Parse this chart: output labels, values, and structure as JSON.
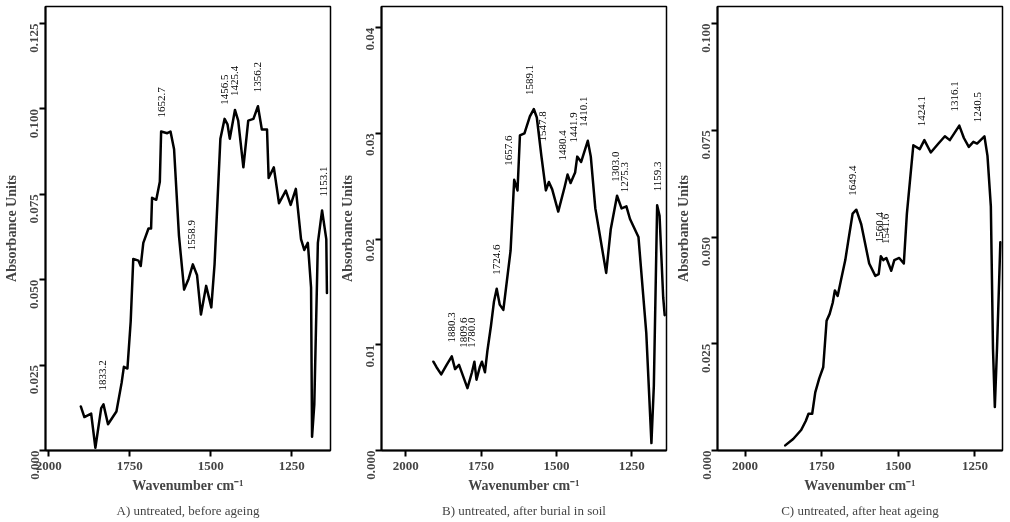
{
  "chart_data": [
    {
      "type": "line",
      "title": "A) untreated, before ageing",
      "xlabel": "Wavenumber cm⁻¹",
      "ylabel": "Absorbance Units",
      "color": "#000000",
      "grid": false,
      "xlim": [
        2010,
        1130
      ],
      "xticks": [
        2000,
        1750,
        1500,
        1250
      ],
      "ylim": [
        0,
        0.13
      ],
      "yticks": [
        {
          "value": 0,
          "label": "0.000"
        },
        {
          "value": 0.025,
          "label": "0.025"
        },
        {
          "value": 0.05,
          "label": "0.050"
        },
        {
          "value": 0.075,
          "label": "0.075"
        },
        {
          "value": 0.1,
          "label": "0.100"
        },
        {
          "value": 0.125,
          "label": "0.125"
        }
      ],
      "x": [
        1901,
        1890,
        1869,
        1856,
        1838,
        1831,
        1817,
        1791,
        1775,
        1768,
        1757,
        1747,
        1739,
        1723,
        1716,
        1708,
        1692,
        1684,
        1681,
        1668,
        1657,
        1653,
        1634,
        1624,
        1613,
        1598,
        1582,
        1568,
        1555,
        1542,
        1530,
        1514,
        1498,
        1488,
        1470,
        1457,
        1448,
        1441,
        1425,
        1415,
        1399,
        1384,
        1368,
        1354,
        1342,
        1326,
        1321,
        1305,
        1289,
        1268,
        1253,
        1237,
        1221,
        1211,
        1200,
        1190,
        1187,
        1180,
        1169,
        1156,
        1143,
        1141
      ],
      "values": [
        0.0129,
        0.0098,
        0.0108,
        0.0008,
        0.0124,
        0.0135,
        0.0077,
        0.0114,
        0.0198,
        0.0245,
        0.024,
        0.0377,
        0.0561,
        0.0556,
        0.054,
        0.0608,
        0.065,
        0.065,
        0.074,
        0.0734,
        0.0787,
        0.0934,
        0.0929,
        0.0934,
        0.0882,
        0.063,
        0.0471,
        0.0503,
        0.0545,
        0.0513,
        0.0398,
        0.0482,
        0.0419,
        0.0545,
        0.0913,
        0.0971,
        0.0955,
        0.0913,
        0.0997,
        0.0966,
        0.0829,
        0.0966,
        0.0971,
        0.1008,
        0.094,
        0.094,
        0.0798,
        0.0829,
        0.0724,
        0.0761,
        0.0719,
        0.0766,
        0.0619,
        0.0587,
        0.0608,
        0.0477,
        0.004,
        0.0135,
        0.0608,
        0.0703,
        0.0619,
        0.0461
      ],
      "annotations": [
        {
          "text": "1833.2",
          "x": 1833.2,
          "y": 0.0135
        },
        {
          "text": "1652.7",
          "x": 1652.7,
          "y": 0.0934
        },
        {
          "text": "1558.9",
          "x": 1558.9,
          "y": 0.0545
        },
        {
          "text": "1456.5",
          "x": 1456.5,
          "y": 0.0971
        },
        {
          "text": "1425.4",
          "x": 1425.4,
          "y": 0.0997
        },
        {
          "text": "1356.2",
          "x": 1356.2,
          "y": 0.1008
        },
        {
          "text": "1153.1",
          "x": 1153.1,
          "y": 0.0703
        }
      ]
    },
    {
      "type": "line",
      "title": "B) untreated, after burial in soil",
      "xlabel": "Wavenumber cm⁻¹",
      "ylabel": "Absorbance Units",
      "color": "#000000",
      "grid": false,
      "xlim": [
        2080,
        1135
      ],
      "xticks": [
        2000,
        1750,
        1500,
        1250
      ],
      "ylim": [
        0,
        0.042
      ],
      "yticks": [
        {
          "value": 0,
          "label": "0.000"
        },
        {
          "value": 0.01,
          "label": "0.01"
        },
        {
          "value": 0.02,
          "label": "0.02"
        },
        {
          "value": 0.03,
          "label": "0.03"
        },
        {
          "value": 0.04,
          "label": "0.04"
        }
      ],
      "x": [
        1908,
        1898,
        1882,
        1864,
        1847,
        1836,
        1823,
        1795,
        1780,
        1772,
        1765,
        1754,
        1747,
        1737,
        1729,
        1717,
        1707,
        1698,
        1688,
        1676,
        1652,
        1640,
        1629,
        1621,
        1606,
        1588,
        1575,
        1565,
        1550,
        1535,
        1525,
        1514,
        1494,
        1473,
        1463,
        1453,
        1438,
        1431,
        1418,
        1396,
        1386,
        1371,
        1355,
        1335,
        1320,
        1299,
        1284,
        1268,
        1256,
        1228,
        1202,
        1185,
        1177,
        1166,
        1158,
        1146,
        1141
      ],
      "values": [
        0.0084,
        0.0079,
        0.0072,
        0.0081,
        0.0089,
        0.0077,
        0.0081,
        0.0059,
        0.0074,
        0.0084,
        0.0067,
        0.0079,
        0.0084,
        0.0074,
        0.0094,
        0.0118,
        0.0141,
        0.0153,
        0.0138,
        0.0133,
        0.0189,
        0.0256,
        0.0246,
        0.0298,
        0.03,
        0.0316,
        0.0323,
        0.0315,
        0.0279,
        0.0246,
        0.0254,
        0.0247,
        0.0226,
        0.0249,
        0.0261,
        0.0253,
        0.0263,
        0.0278,
        0.0273,
        0.0293,
        0.0278,
        0.0229,
        0.0202,
        0.0168,
        0.0209,
        0.0241,
        0.0229,
        0.0231,
        0.0219,
        0.0202,
        0.0111,
        0.0007,
        0.0061,
        0.0232,
        0.0222,
        0.0145,
        0.0128
      ],
      "annotations": [
        {
          "text": "1880.3",
          "x": 1847,
          "y": 0.0089
        },
        {
          "text": "1809.6",
          "x": 1809.6,
          "y": 0.0084
        },
        {
          "text": "1780.0",
          "x": 1780.0,
          "y": 0.0084
        },
        {
          "text": "1724.6",
          "x": 1698,
          "y": 0.0153
        },
        {
          "text": "1657.6",
          "x": 1657.6,
          "y": 0.0256
        },
        {
          "text": "1589.1",
          "x": 1589.1,
          "y": 0.0323
        },
        {
          "text": "1547.8",
          "x": 1547.8,
          "y": 0.0279
        },
        {
          "text": "1480.4",
          "x": 1480.4,
          "y": 0.0261
        },
        {
          "text": "1441.9",
          "x": 1441.9,
          "y": 0.0278
        },
        {
          "text": "1410.1",
          "x": 1410.1,
          "y": 0.0293
        },
        {
          "text": "1303.0",
          "x": 1303.0,
          "y": 0.0241
        },
        {
          "text": "1275.3",
          "x": 1275.3,
          "y": 0.0231
        },
        {
          "text": "1159.3",
          "x": 1166,
          "y": 0.0232
        }
      ]
    },
    {
      "type": "line",
      "title": "C) untreated, after heat ageing",
      "xlabel": "Wavenumber cm⁻¹",
      "ylabel": "Absorbance Units",
      "color": "#000000",
      "grid": false,
      "xlim": [
        2090,
        1160
      ],
      "xticks": [
        2000,
        1750,
        1500,
        1250
      ],
      "ylim": [
        0,
        0.104
      ],
      "yticks": [
        {
          "value": 0,
          "label": "0.000"
        },
        {
          "value": 0.025,
          "label": "0.025"
        },
        {
          "value": 0.05,
          "label": "0.050"
        },
        {
          "value": 0.075,
          "label": "0.075"
        },
        {
          "value": 0.1,
          "label": "0.100"
        }
      ],
      "x": [
        1869,
        1843,
        1817,
        1802,
        1793,
        1781,
        1771,
        1758,
        1745,
        1734,
        1724,
        1714,
        1707,
        1698,
        1688,
        1673,
        1662,
        1649,
        1637,
        1621,
        1595,
        1575,
        1564,
        1557,
        1549,
        1539,
        1523,
        1513,
        1497,
        1482,
        1472,
        1451,
        1430,
        1415,
        1394,
        1369,
        1348,
        1332,
        1301,
        1286,
        1270,
        1255,
        1243,
        1219,
        1209,
        1198,
        1191,
        1185,
        1178,
        1167
      ],
      "values": [
        0.0012,
        0.0027,
        0.0048,
        0.0069,
        0.0086,
        0.0086,
        0.0136,
        0.0169,
        0.0195,
        0.0304,
        0.032,
        0.0346,
        0.0375,
        0.0362,
        0.0396,
        0.0446,
        0.0497,
        0.0555,
        0.0564,
        0.053,
        0.0438,
        0.0409,
        0.0413,
        0.0455,
        0.0446,
        0.0451,
        0.0421,
        0.0446,
        0.0451,
        0.0438,
        0.0555,
        0.0715,
        0.0706,
        0.0727,
        0.0698,
        0.0719,
        0.0736,
        0.0727,
        0.0761,
        0.0732,
        0.0711,
        0.0723,
        0.0719,
        0.0736,
        0.069,
        0.0572,
        0.0237,
        0.0102,
        0.0237,
        0.0488
      ],
      "annotations": [
        {
          "text": "1649.4",
          "x": 1649.4,
          "y": 0.0564
        },
        {
          "text": "1560.4",
          "x": 1560.4,
          "y": 0.0455
        },
        {
          "text": "1541.6",
          "x": 1541.6,
          "y": 0.0451
        },
        {
          "text": "1424.1",
          "x": 1424.1,
          "y": 0.0727
        },
        {
          "text": "1316.1",
          "x": 1316.1,
          "y": 0.0761
        },
        {
          "text": "1240.5",
          "x": 1240.5,
          "y": 0.0736
        }
      ]
    }
  ]
}
